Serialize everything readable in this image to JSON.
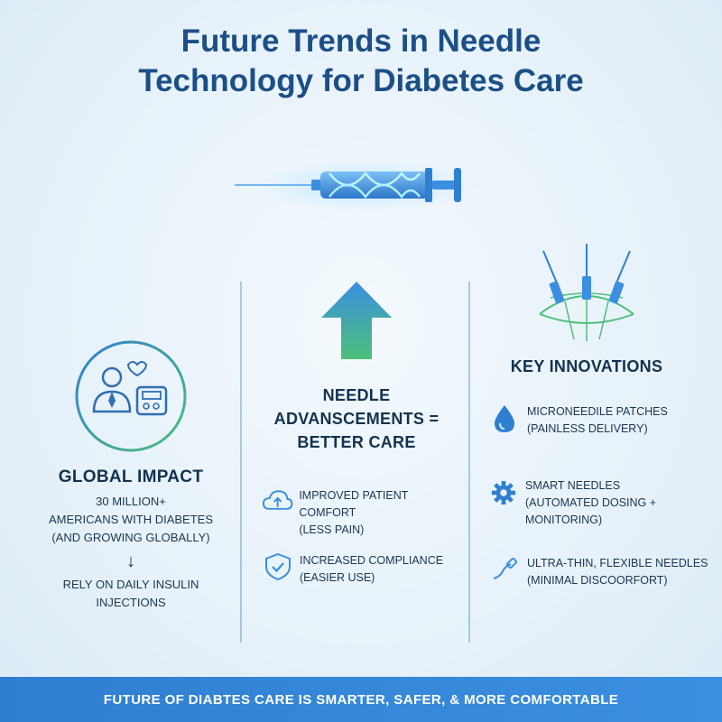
{
  "title": {
    "line1": "Future Trends in Needle",
    "line2": "Technology for Diabetes Care"
  },
  "left": {
    "heading": "GLOBAL IMPACT",
    "line1": "30 MILLION+",
    "line2": "AMERICANS WITH DIABETES",
    "line3": "(AND GROWING GLOBALLY)",
    "line4": "RELY ON DAILY INSULIN",
    "line5": "INJECTIONS"
  },
  "center": {
    "heading_line1": "NEEDLE",
    "heading_line2": "ADVANSCEMENTS =",
    "heading_line3": "BETTER CARE",
    "items": [
      {
        "line1": "IMPROVED PATIENT COMFORT",
        "line2": "(LESS PAIN)",
        "icon": "cloud-upload-icon"
      },
      {
        "line1": "INCREASED COMPLIANCE",
        "line2": "(EASIER USE)",
        "icon": "shield-check-icon"
      }
    ]
  },
  "right": {
    "heading": "KEY INNOVATIONS",
    "items": [
      {
        "line1": "MICRONEEDILE PATCHES",
        "line2": "(PAINLESS DELIVERY)",
        "icon": "droplet-icon"
      },
      {
        "line1": "SMART NEEDLES",
        "line2": "(AUTOMATED DOSING + MONITORING)",
        "icon": "gear-icon"
      },
      {
        "line1": "ULTRA-THIN, FLEXIBLE NEEDLES",
        "line2": "(MINIMAL DISCOORFORT)",
        "icon": "flexible-needle-icon"
      }
    ]
  },
  "footer": {
    "text": "FUTURE OF DIABTES CARE IS SMARTER, SAFER, & MORE COMFORTABLE"
  },
  "colors": {
    "title": "#1b4f86",
    "accent_blue": "#3b8fe0",
    "accent_green": "#4cc07a",
    "footer_bg": "#3b8fe0"
  }
}
